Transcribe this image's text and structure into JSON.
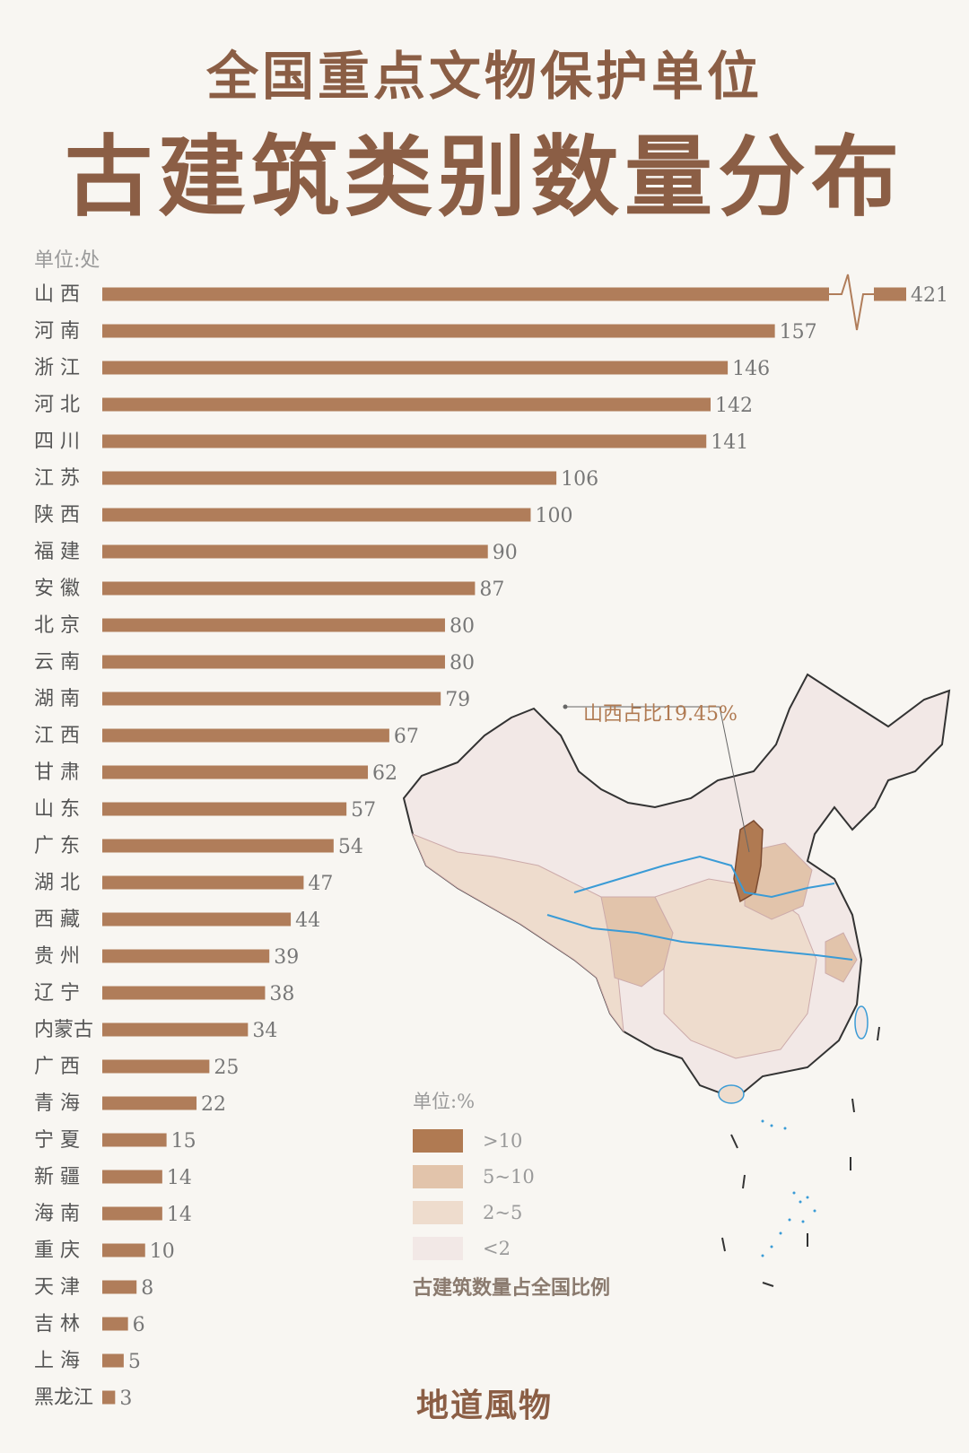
{
  "title_line1": "全国重点文物保护单位",
  "title_line2": "古建筑类别数量分布",
  "unit_label": "单位:处",
  "footer": "地道風物",
  "colors": {
    "bar": "#b07d5a",
    "title": "#8b5e45",
    "text": "#555555",
    "background": "#f8f6f2"
  },
  "map": {
    "callout": "山西占比19.45%",
    "legend_title": "单位:%",
    "legend": [
      {
        "label": ">10",
        "color": "#b07a52"
      },
      {
        "label": "5~10",
        "color": "#e2c4ab"
      },
      {
        "label": "2~5",
        "color": "#eedccd"
      },
      {
        "label": "<2",
        "color": "#f2e8e6"
      }
    ],
    "caption": "古建筑数量占全国比例"
  },
  "chart_data": {
    "type": "bar",
    "orientation": "horizontal",
    "unit": "单位:处",
    "axis_break_on_first": true,
    "categories": [
      "山 西",
      "河 南",
      "浙 江",
      "河 北",
      "四 川",
      "江 苏",
      "陕 西",
      "福 建",
      "安 徽",
      "北 京",
      "云 南",
      "湖 南",
      "江 西",
      "甘 肃",
      "山 东",
      "广 东",
      "湖 北",
      "西 藏",
      "贵 州",
      "辽 宁",
      "内蒙古",
      "广 西",
      "青 海",
      "宁 夏",
      "新 疆",
      "海 南",
      "重 庆",
      "天 津",
      "吉 林",
      "上 海",
      "黑龙江"
    ],
    "values": [
      421,
      157,
      146,
      142,
      141,
      106,
      100,
      90,
      87,
      80,
      80,
      79,
      67,
      62,
      57,
      54,
      47,
      44,
      39,
      38,
      34,
      25,
      22,
      15,
      14,
      14,
      10,
      8,
      6,
      5,
      3
    ]
  }
}
